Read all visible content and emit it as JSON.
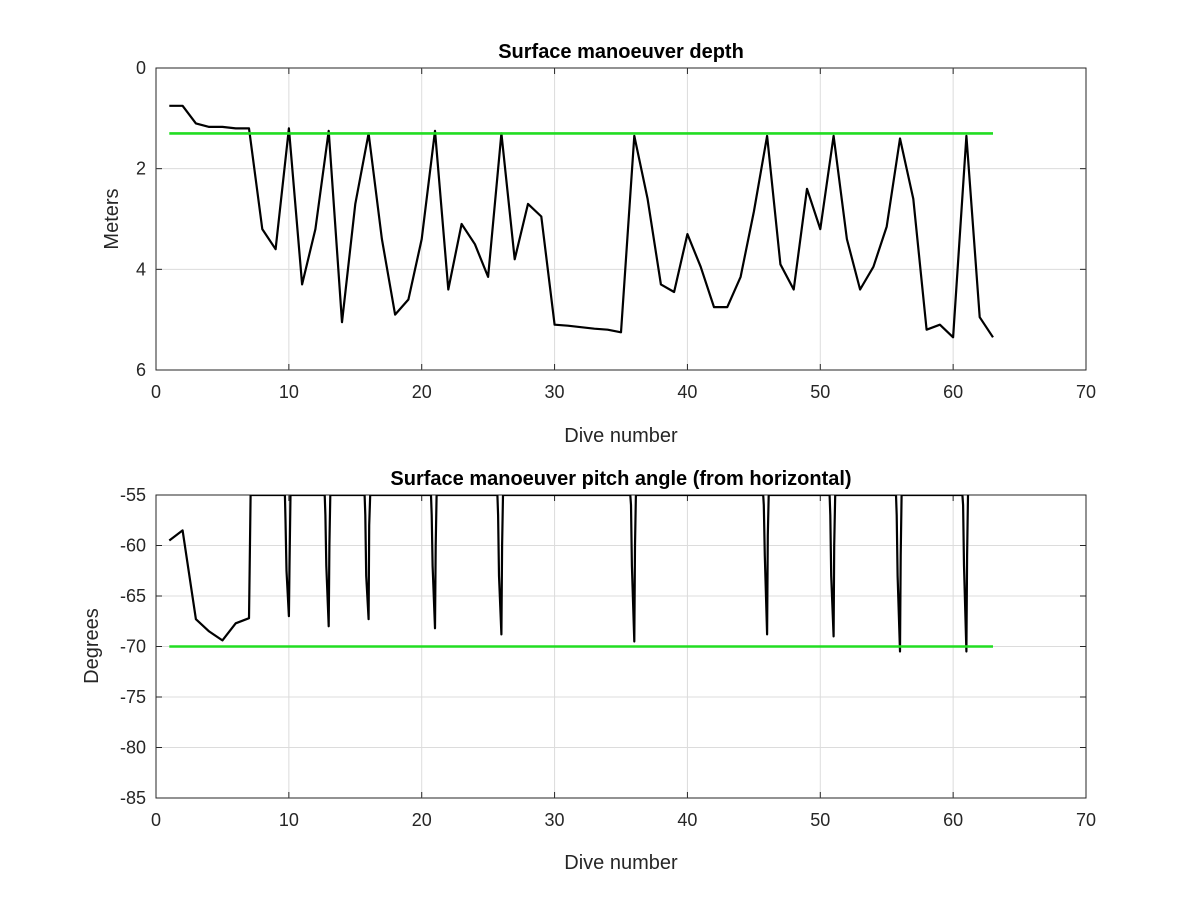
{
  "chart_data": [
    {
      "type": "line",
      "title": "Surface manoeuver depth",
      "xlabel": "Dive number",
      "ylabel": "Meters",
      "xlim": [
        0,
        70
      ],
      "ylim": [
        0,
        6
      ],
      "y_reversed": true,
      "grid": true,
      "xticks": [
        "0",
        "10",
        "20",
        "30",
        "40",
        "50",
        "60",
        "70"
      ],
      "yticks": [
        "0",
        "2",
        "4",
        "6"
      ],
      "colors": {
        "series": "#000000",
        "threshold": "#22dd22"
      },
      "series": [
        {
          "x": [
            1,
            2,
            3,
            4,
            5,
            6,
            7,
            8,
            9,
            10,
            11,
            12,
            13,
            14,
            15,
            16,
            17,
            18,
            19,
            20,
            21,
            22,
            23,
            24,
            25,
            26,
            27,
            28,
            29,
            30,
            31,
            32,
            33,
            34,
            35,
            36,
            37,
            38,
            39,
            40,
            41,
            42,
            43,
            44,
            45,
            46,
            47,
            48,
            49,
            50,
            51,
            52,
            53,
            54,
            55,
            56,
            57,
            58,
            59,
            60,
            61,
            62,
            63
          ],
          "values": [
            0.75,
            0.75,
            1.1,
            1.17,
            1.17,
            1.2,
            1.2,
            3.2,
            3.6,
            1.2,
            4.3,
            3.2,
            1.25,
            5.05,
            2.7,
            1.3,
            3.4,
            4.9,
            4.6,
            3.4,
            1.25,
            4.4,
            3.1,
            3.5,
            4.15,
            1.3,
            3.8,
            2.7,
            2.95,
            5.1,
            5.12,
            5.15,
            5.18,
            5.2,
            5.25,
            1.35,
            2.6,
            4.3,
            4.45,
            3.3,
            3.95,
            4.75,
            4.75,
            4.15,
            2.85,
            1.35,
            3.9,
            4.4,
            2.4,
            3.2,
            1.35,
            3.4,
            4.4,
            3.95,
            3.15,
            1.4,
            2.6,
            5.2,
            5.1,
            5.35,
            1.35,
            4.95,
            5.35
          ]
        },
        {
          "x": [
            1,
            63
          ],
          "values": [
            1.3,
            1.3
          ]
        }
      ]
    },
    {
      "type": "line",
      "title": "Surface manoeuver pitch angle (from horizontal)",
      "xlabel": "Dive number",
      "ylabel": "Degrees",
      "xlim": [
        0,
        70
      ],
      "ylim": [
        -85,
        -55
      ],
      "grid": true,
      "xticks": [
        "0",
        "10",
        "20",
        "30",
        "40",
        "50",
        "60",
        "70"
      ],
      "yticks": [
        "-55",
        "-60",
        "-65",
        "-70",
        "-75",
        "-80",
        "-85"
      ],
      "colors": {
        "series": "#000000",
        "threshold": "#22dd22"
      },
      "series": [
        {
          "x": [
            1,
            2,
            3,
            4,
            5,
            6,
            7,
            7.05,
            7.12,
            9.7,
            9.75,
            9.82,
            10,
            10.05,
            10.12,
            12.7,
            12.75,
            12.82,
            13,
            13.05,
            13.12,
            15.7,
            15.75,
            15.82,
            16,
            16.05,
            16.12,
            20.7,
            20.75,
            20.82,
            21,
            21.05,
            21.12,
            25.7,
            25.75,
            25.82,
            26,
            26.05,
            26.12,
            35.7,
            35.75,
            35.82,
            36,
            36.05,
            36.12,
            45.7,
            45.75,
            45.82,
            46,
            46.05,
            46.12,
            50.7,
            50.75,
            50.82,
            51,
            51.05,
            51.12,
            55.7,
            55.75,
            55.82,
            56,
            56.05,
            56.12,
            60.7,
            60.75,
            60.82,
            61,
            61.05,
            61.12
          ],
          "values": [
            -59.5,
            -58.5,
            -67.3,
            -68.5,
            -69.4,
            -67.7,
            -67.2,
            -62,
            -55,
            -55,
            -57.5,
            -62.5,
            -67,
            -62,
            -55,
            -55,
            -57,
            -62,
            -68,
            -60,
            -55,
            -55,
            -57,
            -63,
            -67.3,
            -58,
            -55,
            -55,
            -57,
            -62,
            -68.2,
            -60,
            -55,
            -55,
            -57,
            -63,
            -68.8,
            -60,
            -55,
            -55,
            -56,
            -62,
            -69.5,
            -60,
            -55,
            -55,
            -56,
            -61,
            -68.8,
            -59,
            -55,
            -55,
            -57,
            -63,
            -69,
            -60,
            -55,
            -55,
            -57,
            -63,
            -70.5,
            -61,
            -55,
            -55,
            -56,
            -62,
            -70.5,
            -61,
            -55
          ]
        },
        {
          "x": [
            1,
            63
          ],
          "values": [
            -70,
            -70
          ]
        }
      ]
    }
  ]
}
